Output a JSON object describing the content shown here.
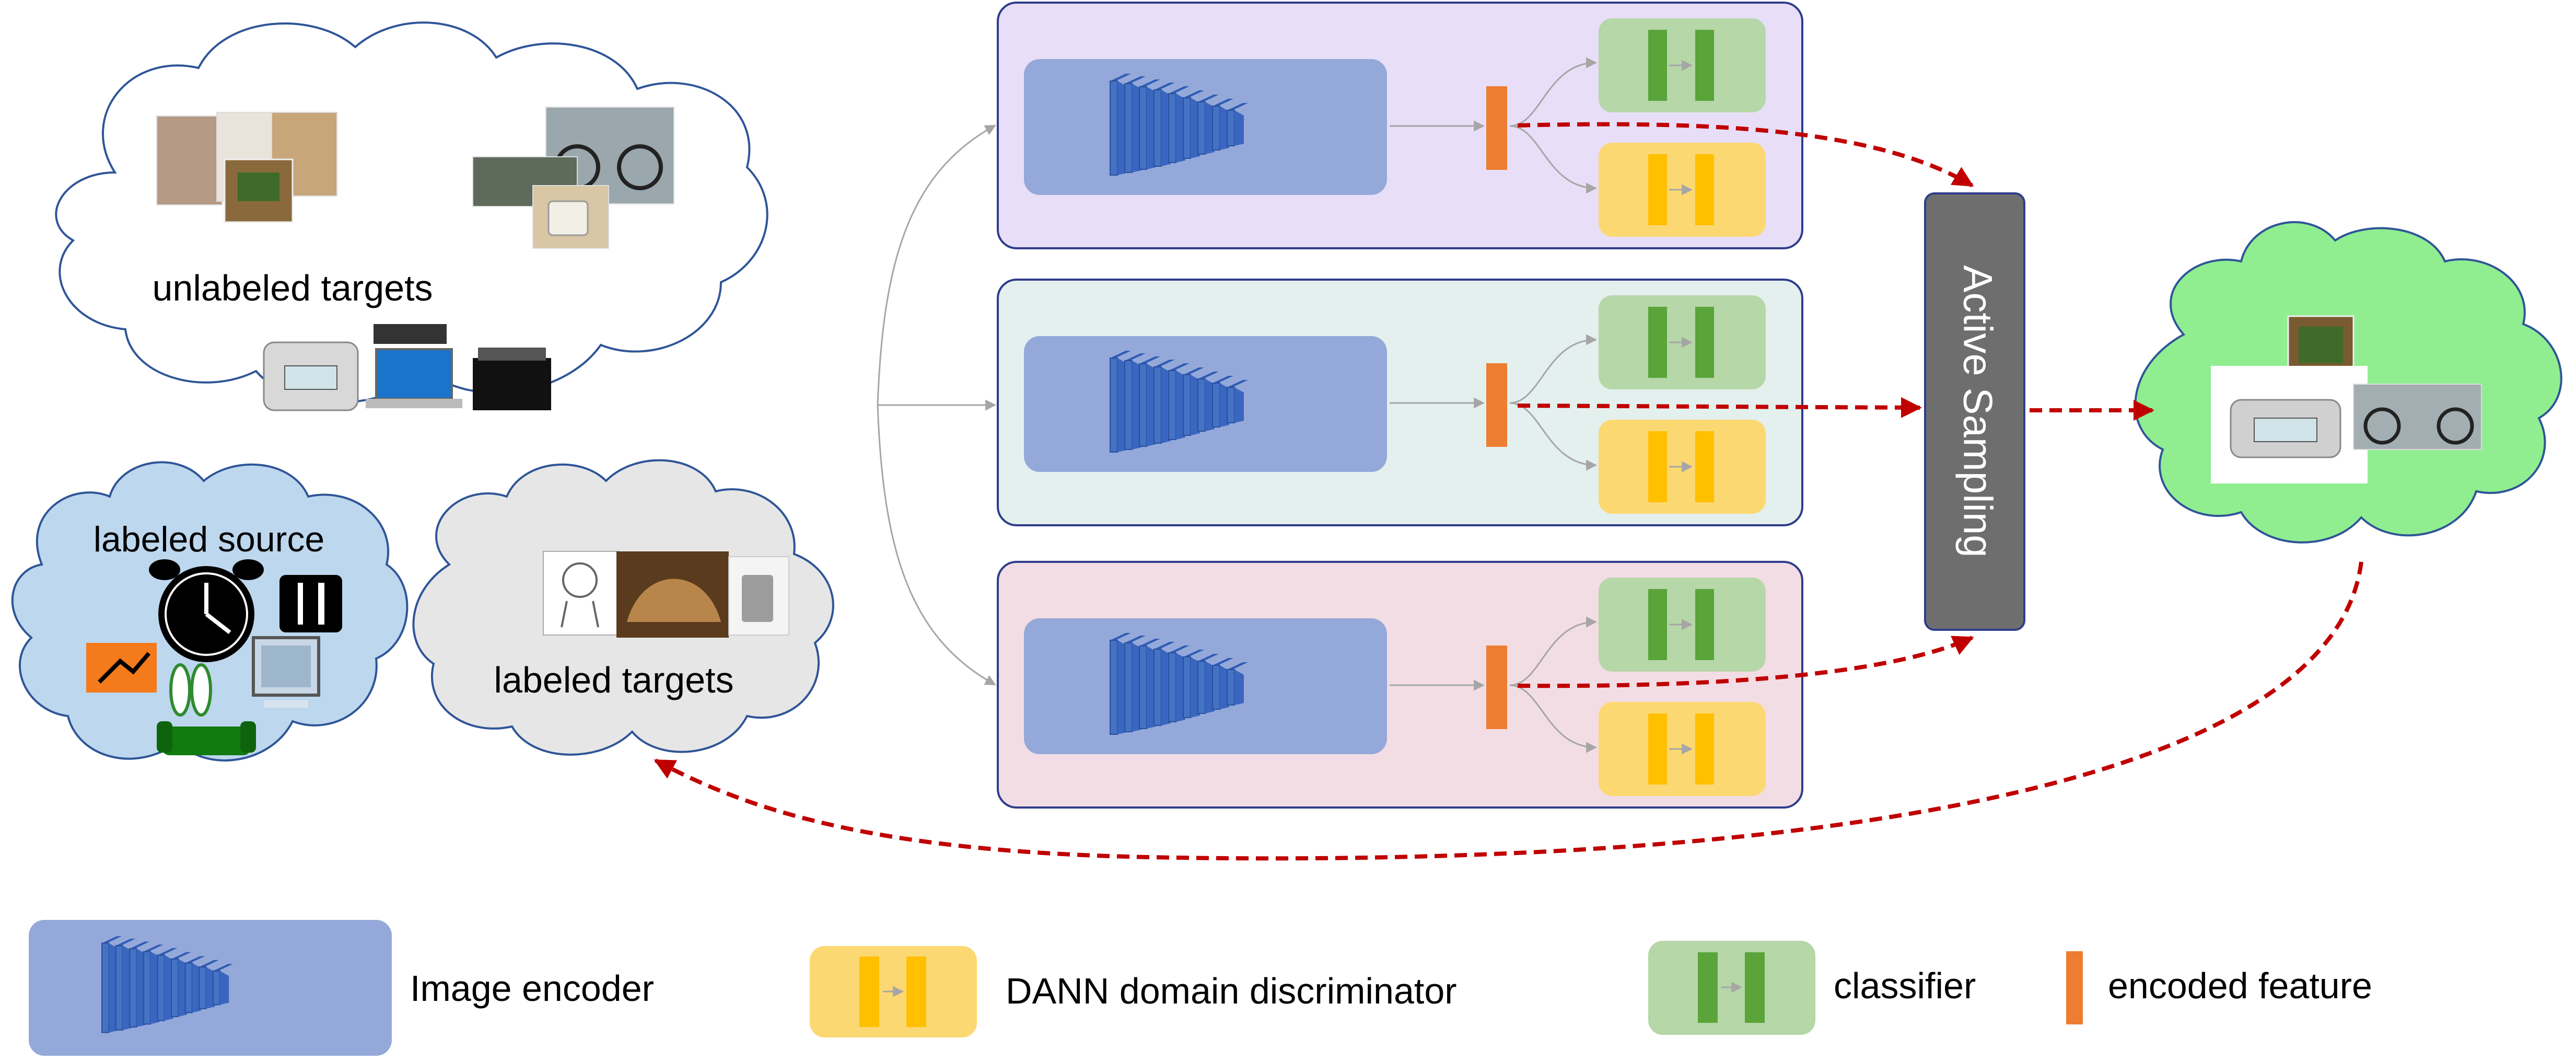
{
  "clouds": {
    "unlabeled": {
      "label": "unlabeled targets",
      "fill": "#ffffff",
      "stroke": "#2f5597"
    },
    "labeled_source": {
      "label": "labeled source",
      "fill": "#bdd7ee",
      "stroke": "#2f5597"
    },
    "labeled_targets": {
      "label": "labeled targets",
      "fill": "#e7e6e6",
      "stroke": "#2f5597"
    },
    "selected": {
      "label": "",
      "fill": "#90ee90",
      "stroke": "#2f5597"
    }
  },
  "pipelines": [
    {
      "panel_fill": "#e8def8"
    },
    {
      "panel_fill": "#e3f0ee"
    },
    {
      "panel_fill": "#f3dde4"
    }
  ],
  "active_sampling": {
    "label": "Active Sampling",
    "fill": "#6e6e6e"
  },
  "legend": {
    "image_encoder": "Image encoder",
    "dann": "DANN domain discriminator",
    "classifier": "classifier",
    "encoded_feature": "encoded feature"
  },
  "colors": {
    "encoder_box": "#94a9d9",
    "encoder_layers": "#4472c4",
    "classifier_box": "#b6d7a8",
    "classifier_bars": "#5aa43a",
    "dann_box": "#fcd873",
    "dann_bars": "#ffc000",
    "feature": "#ed7d31",
    "dashed_arrow": "#c00000",
    "panel_stroke": "#2f3d8a"
  }
}
